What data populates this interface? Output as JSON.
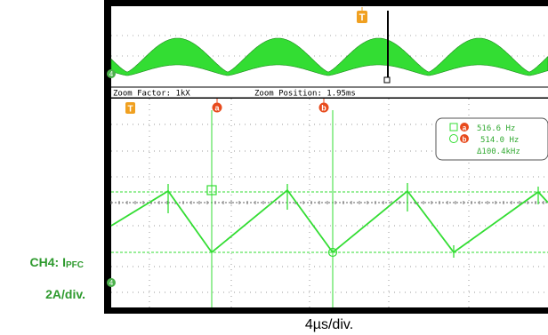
{
  "zoom_bar": {
    "zoom_factor": "Zoom Factor: 1kX",
    "zoom_position": "Zoom Position: 1.95ms"
  },
  "trigger_marker": "T",
  "cursors": {
    "a_label": "a",
    "b_label": "b",
    "a_value": "516.6 Hz",
    "b_value": "514.0 Hz",
    "delta_value": "Δ100.4kHz"
  },
  "channel": {
    "number": "4",
    "name_prefix": "CH4: I",
    "name_sub": "PFC",
    "scale": "2A/div."
  },
  "timebase": "4µs/div.",
  "colors": {
    "trace": "#33dd33",
    "screen": "#ffffff",
    "frame": "#000000",
    "cursor_badge": "#e84a1c",
    "trigger_badge": "#f0a020",
    "label_green": "#2e9a2e"
  }
}
